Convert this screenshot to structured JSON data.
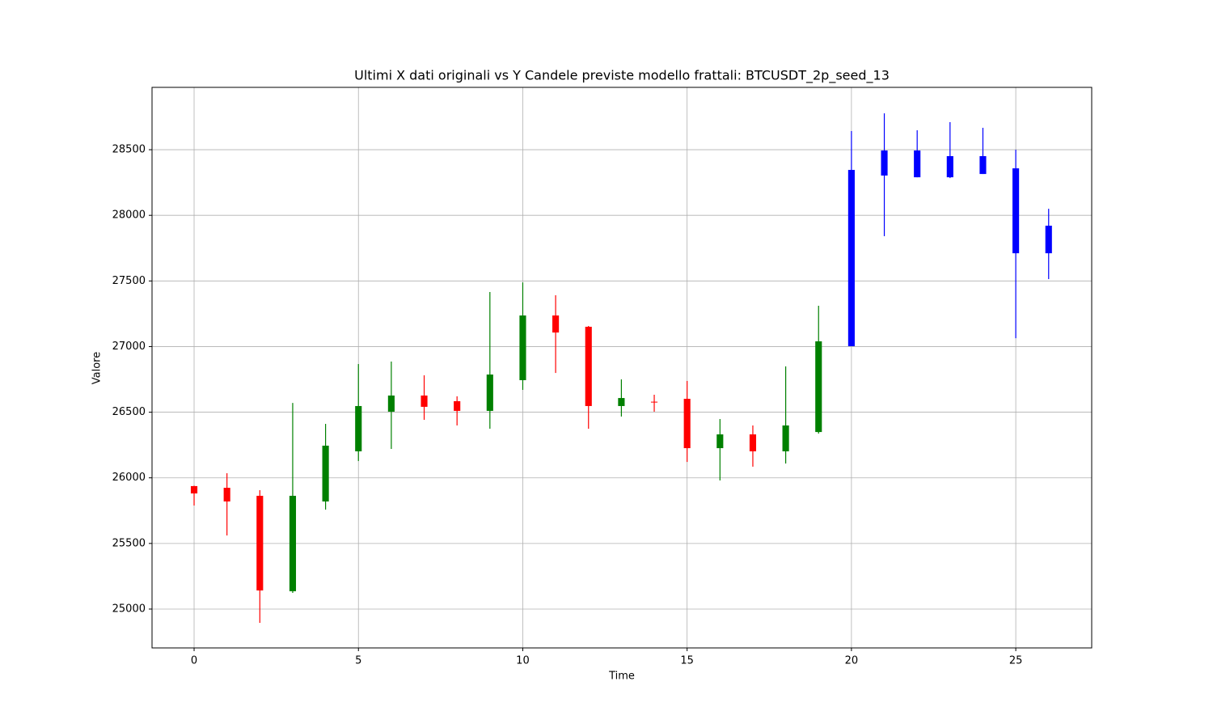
{
  "chart_data": {
    "type": "candlestick",
    "title": "Ultimi X dati originali vs Y Candele previste modello frattali: BTCUSDT_2p_seed_13",
    "x_label": "Time",
    "y_label": "Valore",
    "x": [
      0,
      1,
      2,
      3,
      4,
      5,
      6,
      7,
      8,
      9,
      10,
      11,
      12,
      13,
      14,
      15,
      16,
      17,
      18,
      19,
      20,
      21,
      22,
      23,
      24,
      25,
      26
    ],
    "open": [
      25937,
      25924,
      25863,
      25136,
      25820,
      26202,
      26504,
      26627,
      26584,
      26510,
      26744,
      27237,
      27151,
      26547,
      26580,
      26602,
      26226,
      26331,
      26202,
      26349,
      27003,
      28303,
      28494,
      28451,
      28451,
      28358,
      27921
    ],
    "high": [
      25940,
      26035,
      25906,
      26571,
      26411,
      26867,
      26886,
      26781,
      26621,
      27416,
      27489,
      27391,
      27157,
      26750,
      26633,
      26738,
      26448,
      26399,
      26849,
      27311,
      28642,
      28777,
      28648,
      28710,
      28667,
      28500,
      28050
    ],
    "low": [
      25789,
      25561,
      24895,
      25123,
      25758,
      26128,
      26220,
      26442,
      26399,
      26374,
      26670,
      26799,
      26374,
      26467,
      26504,
      26121,
      25980,
      26085,
      26109,
      26337,
      27003,
      27841,
      28290,
      28284,
      28315,
      27064,
      27514
    ],
    "close": [
      25881,
      25820,
      25142,
      25863,
      26245,
      26547,
      26627,
      26541,
      26510,
      26787,
      27237,
      27107,
      26547,
      26608,
      26575,
      26226,
      26331,
      26202,
      26399,
      27040,
      28346,
      28494,
      28290,
      28290,
      28315,
      27711,
      27711
    ],
    "colors": [
      "red",
      "red",
      "red",
      "green",
      "green",
      "green",
      "green",
      "red",
      "red",
      "green",
      "green",
      "red",
      "red",
      "green",
      "red",
      "red",
      "green",
      "red",
      "green",
      "green",
      "blue",
      "blue",
      "blue",
      "blue",
      "blue",
      "blue",
      "blue"
    ],
    "xlim": [
      -1.28,
      27.31
    ],
    "ylim": [
      24704,
      28975
    ],
    "xticks": [
      0,
      5,
      10,
      15,
      20,
      25
    ],
    "yticks": [
      25000,
      25500,
      26000,
      26500,
      27000,
      27500,
      28000,
      28500
    ],
    "grid": true
  }
}
